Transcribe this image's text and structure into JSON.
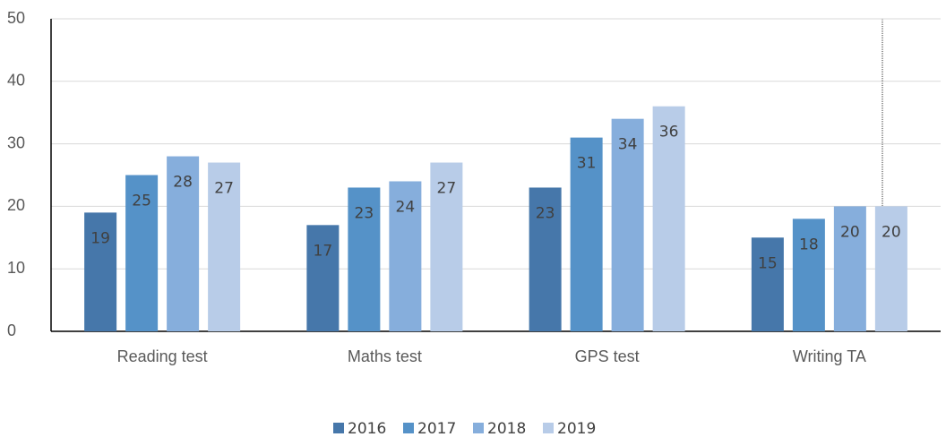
{
  "chart_data": {
    "type": "bar",
    "categories": [
      "Reading test",
      "Maths test",
      "GPS test",
      "Writing TA"
    ],
    "series": [
      {
        "name": "2016",
        "color": "#4677aa",
        "values": [
          19,
          17,
          23,
          15
        ]
      },
      {
        "name": "2017",
        "color": "#5592c8",
        "values": [
          25,
          23,
          31,
          18
        ]
      },
      {
        "name": "2018",
        "color": "#86aedc",
        "values": [
          28,
          24,
          34,
          20
        ]
      },
      {
        "name": "2019",
        "color": "#b8cce8",
        "values": [
          27,
          27,
          36,
          20
        ]
      }
    ],
    "ylim": [
      0,
      50
    ],
    "yticks": [
      0,
      10,
      20,
      30,
      40,
      50
    ],
    "grid": true,
    "legend": "bottom"
  }
}
